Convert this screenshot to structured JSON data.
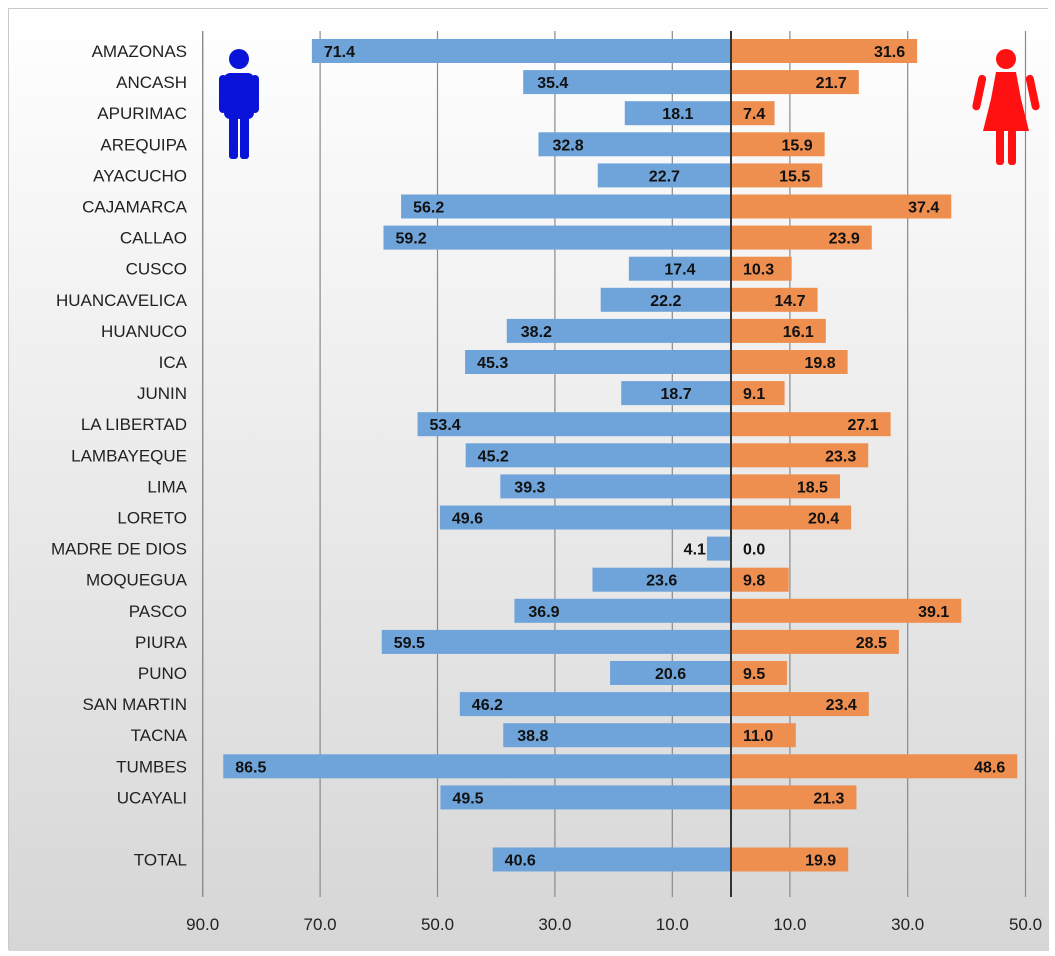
{
  "chart_data": {
    "type": "bar",
    "orientation": "horizontal",
    "layout": "butterfly",
    "categories": [
      "AMAZONAS",
      "ANCASH",
      "APURIMAC",
      "AREQUIPA",
      "AYACUCHO",
      "CAJAMARCA",
      "CALLAO",
      "CUSCO",
      "HUANCAVELICA",
      "HUANUCO",
      "ICA",
      "JUNIN",
      "LA LIBERTAD",
      "LAMBAYEQUE",
      "LIMA",
      "LORETO",
      "MADRE DE DIOS",
      "MOQUEGUA",
      "PASCO",
      "PIURA",
      "PUNO",
      "SAN MARTIN",
      "TACNA",
      "TUMBES",
      "UCAYALI",
      "TOTAL"
    ],
    "series": [
      {
        "color": "#6fa4da",
        "side": "left",
        "icon": "male-person-icon",
        "icon_color": "#0a14d8",
        "values": [
          71.4,
          35.4,
          18.1,
          32.8,
          22.7,
          56.2,
          59.2,
          17.4,
          22.2,
          38.2,
          45.3,
          18.7,
          53.4,
          45.2,
          39.3,
          49.6,
          4.1,
          23.6,
          36.9,
          59.5,
          20.6,
          46.2,
          38.8,
          86.5,
          49.5,
          40.6
        ],
        "value_labels": [
          "71.4",
          "35.4",
          "18.1",
          "32.8",
          "22.7",
          "56.2",
          "59.2",
          "17.4",
          "22.2",
          "38.2",
          "45.3",
          "18.7",
          "53.4",
          "45.2",
          "39.3",
          "49.6",
          "4.1",
          "23.6",
          "36.9",
          "59.5",
          "20.6",
          "46.2",
          "38.8",
          "86.5",
          "49.5",
          "40.6"
        ]
      },
      {
        "color": "#ee8e4f",
        "side": "right",
        "icon": "female-person-icon",
        "icon_color": "#ff1111",
        "values": [
          31.6,
          21.7,
          7.4,
          15.9,
          15.5,
          37.4,
          23.9,
          10.3,
          14.7,
          16.1,
          19.8,
          9.1,
          27.1,
          23.3,
          18.5,
          20.4,
          0.0,
          9.8,
          39.1,
          28.5,
          9.5,
          23.4,
          11.0,
          48.6,
          21.3,
          19.9
        ],
        "value_labels": [
          "31.6",
          "21.7",
          "7.4",
          "15.9",
          "15.5",
          "37.4",
          "23.9",
          "10.3",
          "14.7",
          "16.1",
          "19.8",
          "9.1",
          "27.1",
          "23.3",
          "18.5",
          "20.4",
          "0.0",
          "9.8",
          "39.1",
          "28.5",
          "9.5",
          "23.4",
          "11.0",
          "48.6",
          "21.3",
          "19.9"
        ]
      }
    ],
    "x_left_range": [
      0,
      90
    ],
    "x_right_range": [
      0,
      50
    ],
    "x_tick_labels_left": [
      "90.0",
      "70.0",
      "50.0",
      "30.0",
      "10.0"
    ],
    "x_tick_values_left": [
      90,
      70,
      50,
      30,
      10
    ],
    "x_tick_labels_right": [
      "10.0",
      "30.0",
      "50.0"
    ],
    "x_tick_values_right": [
      10,
      30,
      50
    ],
    "grid": true,
    "title": "",
    "xlabel": "",
    "ylabel": ""
  }
}
